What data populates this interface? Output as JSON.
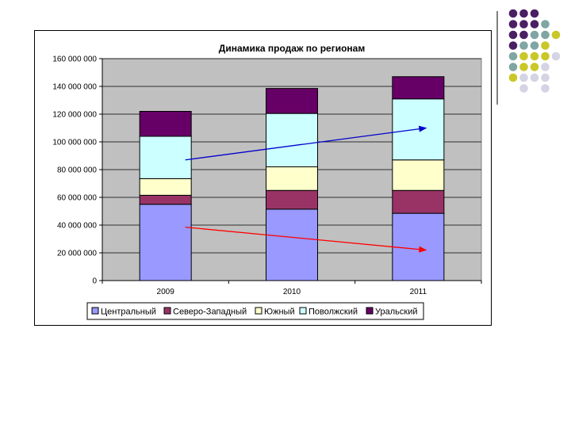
{
  "decoration": {
    "dot_colors": [
      "#4b1f63",
      "#7fa6a3",
      "#c9c828",
      "#d4d4e4"
    ]
  },
  "chart_data": {
    "type": "bar",
    "stacked": true,
    "title": "Динамика продаж по регионам",
    "xlabel": "",
    "ylabel": "",
    "categories": [
      "2009",
      "2010",
      "2011"
    ],
    "ylim": [
      0,
      160000000
    ],
    "yticks": [
      0,
      20000000,
      40000000,
      60000000,
      80000000,
      100000000,
      120000000,
      140000000,
      160000000
    ],
    "ytick_labels": [
      "0",
      "20 000 000",
      "40 000 000",
      "60 000 000",
      "80 000 000",
      "100 000 000",
      "120 000 000",
      "140 000 000",
      "160 000 000"
    ],
    "grid": true,
    "legend_position": "bottom",
    "series": [
      {
        "name": "Центральный",
        "color": "#9999ff",
        "values": [
          55000000,
          51500000,
          48500000
        ]
      },
      {
        "name": "Северо-Западный",
        "color": "#993366",
        "values": [
          6500000,
          13500000,
          16500000
        ]
      },
      {
        "name": "Южный",
        "color": "#ffffcc",
        "values": [
          12000000,
          17000000,
          22000000
        ]
      },
      {
        "name": "Поволжский",
        "color": "#ccffff",
        "values": [
          30500000,
          38500000,
          44000000
        ]
      },
      {
        "name": "Уральский",
        "color": "#660066",
        "values": [
          18000000,
          18000000,
          16000000
        ]
      }
    ],
    "annotations": [
      {
        "type": "trend-arrow",
        "color": "#0000cc",
        "from": [
          0,
          87000000
        ],
        "to": [
          2,
          110000000
        ]
      },
      {
        "type": "trend-arrow",
        "color": "#ff0000",
        "from": [
          0,
          38500000
        ],
        "to": [
          2,
          22000000
        ]
      }
    ]
  }
}
